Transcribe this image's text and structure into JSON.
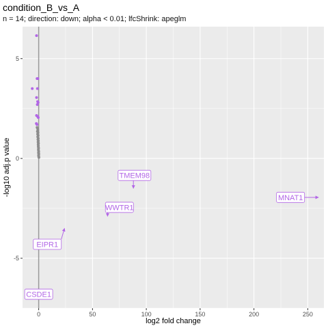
{
  "chart_data": {
    "type": "scatter",
    "title": "condition_B_vs_A",
    "subtitle": "n = 14; direction: down; alpha < 0.01; lfcShrink: apeglm",
    "xlabel": "log2 fold change",
    "ylabel": "-log10 adj.p value",
    "xlim": [
      -15,
      265
    ],
    "ylim": [
      -7.5,
      6.6
    ],
    "x_ticks": [
      0,
      50,
      100,
      150,
      200,
      250
    ],
    "y_ticks": [
      -5,
      0,
      5
    ],
    "grid": true,
    "vline_x": 0,
    "colors": {
      "significant": "#b266e6",
      "not_significant": "#8c8c8c",
      "panel": "#ebebeb",
      "grid": "#ffffff",
      "vline": "#999999"
    },
    "significant_points": [
      {
        "x": -2.0,
        "y": 6.15
      },
      {
        "x": -1.5,
        "y": 4.0
      },
      {
        "x": -0.8,
        "y": 4.0
      },
      {
        "x": -6.0,
        "y": 3.5
      },
      {
        "x": -1.2,
        "y": 3.5
      },
      {
        "x": -2.0,
        "y": 3.05
      },
      {
        "x": -1.0,
        "y": 2.85
      },
      {
        "x": -0.5,
        "y": 2.8
      },
      {
        "x": -1.3,
        "y": 2.7
      },
      {
        "x": -2.0,
        "y": 2.15
      },
      {
        "x": -1.0,
        "y": 2.1
      },
      {
        "x": -0.4,
        "y": 2.05
      },
      {
        "x": -2.2,
        "y": 1.75
      },
      {
        "x": -1.6,
        "y": 1.7
      }
    ],
    "nonsignificant_points": [
      {
        "x": -1.5,
        "y": 1.55
      },
      {
        "x": -1.0,
        "y": 1.5
      },
      {
        "x": -0.8,
        "y": 1.42
      },
      {
        "x": -1.2,
        "y": 1.35
      },
      {
        "x": -0.6,
        "y": 1.3
      },
      {
        "x": -1.0,
        "y": 1.22
      },
      {
        "x": -0.5,
        "y": 1.15
      },
      {
        "x": -0.9,
        "y": 1.08
      },
      {
        "x": -0.4,
        "y": 1.0
      },
      {
        "x": -0.7,
        "y": 0.95
      },
      {
        "x": -0.3,
        "y": 0.88
      },
      {
        "x": -0.6,
        "y": 0.82
      },
      {
        "x": -0.2,
        "y": 0.76
      },
      {
        "x": -0.5,
        "y": 0.7
      },
      {
        "x": -0.3,
        "y": 0.64
      },
      {
        "x": -0.4,
        "y": 0.58
      },
      {
        "x": -0.1,
        "y": 0.52
      },
      {
        "x": -0.3,
        "y": 0.46
      },
      {
        "x": -0.2,
        "y": 0.4
      },
      {
        "x": 0.0,
        "y": 0.34
      },
      {
        "x": -0.2,
        "y": 0.28
      },
      {
        "x": 0.1,
        "y": 0.22
      },
      {
        "x": -0.1,
        "y": 0.16
      },
      {
        "x": 0.0,
        "y": 0.1
      },
      {
        "x": 0.2,
        "y": 0.05
      }
    ],
    "labels": [
      {
        "text": "TMEM98",
        "point": {
          "x": 88,
          "y": -1.5
        },
        "label_at": {
          "x": 89,
          "y": -0.85
        }
      },
      {
        "text": "WWTR1",
        "point": {
          "x": 64,
          "y": -2.9
        },
        "label_at": {
          "x": 75,
          "y": -2.45
        }
      },
      {
        "text": "MNAT1",
        "point": {
          "x": 260,
          "y": -1.95
        },
        "label_at": {
          "x": 234,
          "y": -1.95
        }
      },
      {
        "text": "EIPR1",
        "point": {
          "x": 24,
          "y": -3.5
        },
        "label_at": {
          "x": 8,
          "y": -4.3
        }
      },
      {
        "text": "CSDE1",
        "point": {
          "x": 0,
          "y": -6.8
        },
        "label_at": {
          "x": 0,
          "y": -6.8
        }
      }
    ]
  }
}
